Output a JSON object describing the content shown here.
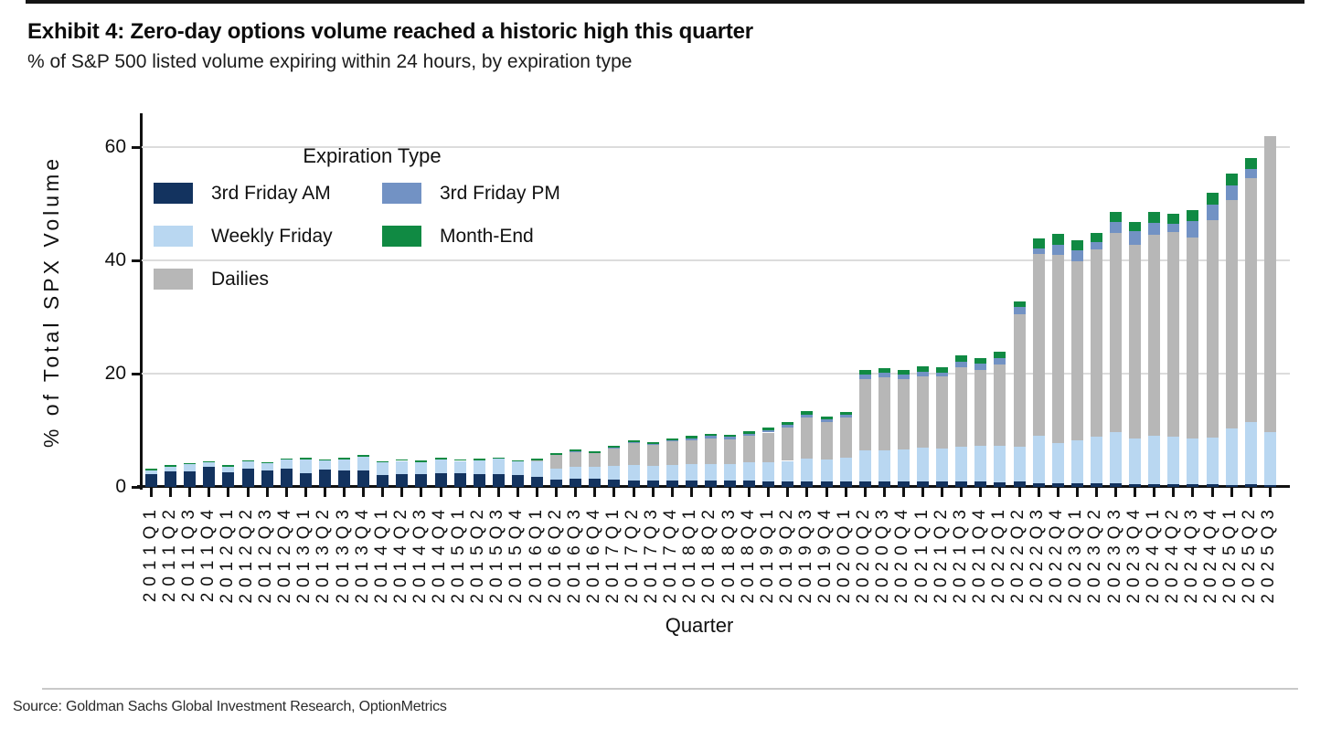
{
  "header": {
    "title": "Exhibit 4: Zero-day options volume reached a historic high this quarter",
    "subtitle": "% of S&P 500 listed volume expiring within 24 hours, by expiration type"
  },
  "chart_data": {
    "type": "bar",
    "stacked": true,
    "ylabel": "% of Total SPX Volume",
    "xlabel": "Quarter",
    "ylim": [
      0,
      65
    ],
    "yticks": [
      0,
      20,
      40,
      60
    ],
    "grid": "horizontal",
    "legend_title": "Expiration Type",
    "legend_position": "upper-left-inside",
    "legend_order": [
      "3rd Friday AM",
      "3rd Friday PM",
      "Weekly Friday",
      "Month-End",
      "Dailies"
    ],
    "categories": [
      "2011Q1",
      "2011Q2",
      "2011Q3",
      "2011Q4",
      "2012Q1",
      "2012Q2",
      "2012Q3",
      "2012Q4",
      "2013Q1",
      "2013Q2",
      "2013Q3",
      "2013Q4",
      "2014Q1",
      "2014Q2",
      "2014Q3",
      "2014Q4",
      "2015Q1",
      "2015Q2",
      "2015Q3",
      "2015Q4",
      "2016Q1",
      "2016Q2",
      "2016Q3",
      "2016Q4",
      "2017Q1",
      "2017Q2",
      "2017Q3",
      "2017Q4",
      "2018Q1",
      "2018Q2",
      "2018Q3",
      "2018Q4",
      "2019Q1",
      "2019Q2",
      "2019Q3",
      "2019Q4",
      "2020Q1",
      "2020Q2",
      "2020Q3",
      "2020Q4",
      "2021Q1",
      "2021Q2",
      "2021Q3",
      "2021Q4",
      "2022Q1",
      "2022Q2",
      "2022Q3",
      "2022Q4",
      "2023Q1",
      "2023Q2",
      "2023Q3",
      "2023Q4",
      "2024Q1",
      "2024Q2",
      "2024Q3",
      "2024Q4",
      "2025Q1",
      "2025Q2",
      "2025Q3"
    ],
    "series": [
      {
        "name": "3rd Friday AM",
        "color": "#13335F",
        "values": [
          2.3,
          2.7,
          2.8,
          3.5,
          2.6,
          3.2,
          2.9,
          3.3,
          2.5,
          3.1,
          2.9,
          2.9,
          2.1,
          2.2,
          2.3,
          2.4,
          2.4,
          2.3,
          2.2,
          2.1,
          1.7,
          1.3,
          1.4,
          1.4,
          1.3,
          1.2,
          1.2,
          1.2,
          1.2,
          1.1,
          1.1,
          1.1,
          1.0,
          1.0,
          1.0,
          1.0,
          1.0,
          1.0,
          1.0,
          0.9,
          0.9,
          0.9,
          0.9,
          0.9,
          0.8,
          0.9,
          0.7,
          0.7,
          0.6,
          0.6,
          0.6,
          0.5,
          0.5,
          0.5,
          0.5,
          0.5,
          0.4,
          0.5,
          0.3
        ]
      },
      {
        "name": "Weekly Friday",
        "color": "#B9D7F1",
        "values": [
          0.6,
          0.9,
          1.2,
          0.8,
          1.0,
          1.3,
          1.3,
          1.5,
          2.4,
          1.6,
          2.0,
          2.4,
          2.3,
          2.4,
          2.1,
          2.4,
          2.2,
          2.4,
          2.8,
          2.4,
          2.8,
          2.0,
          2.1,
          2.2,
          2.4,
          2.6,
          2.5,
          2.7,
          2.9,
          3.0,
          3.0,
          3.2,
          3.4,
          3.6,
          4.0,
          3.8,
          4.1,
          5.4,
          5.5,
          5.7,
          6.0,
          5.8,
          6.2,
          6.3,
          6.5,
          6.2,
          8.3,
          7.0,
          7.7,
          8.2,
          9.0,
          8.0,
          8.6,
          8.3,
          8.0,
          8.2,
          10.0,
          11.0,
          9.3
        ]
      },
      {
        "name": "Dailies",
        "color": "#B7B7B7",
        "values": [
          0,
          0,
          0,
          0,
          0,
          0,
          0,
          0,
          0,
          0,
          0,
          0,
          0,
          0,
          0,
          0,
          0,
          0,
          0,
          0,
          0.2,
          2.3,
          2.7,
          2.3,
          3.0,
          3.9,
          3.7,
          4.1,
          4.2,
          4.5,
          4.3,
          4.7,
          5.2,
          5.9,
          7.3,
          6.6,
          7.2,
          12.7,
          12.9,
          12.4,
          12.6,
          12.8,
          14.0,
          13.5,
          14.3,
          23.4,
          32.1,
          33.2,
          31.5,
          33.2,
          35.2,
          34.3,
          35.4,
          36.2,
          35.5,
          38.4,
          40.2,
          43.0,
          52.4
        ]
      },
      {
        "name": "3rd Friday PM",
        "color": "#7292C4",
        "values": [
          0,
          0,
          0,
          0,
          0,
          0,
          0,
          0,
          0,
          0,
          0,
          0,
          0,
          0,
          0,
          0,
          0,
          0,
          0,
          0,
          0,
          0,
          0.1,
          0.1,
          0.2,
          0.2,
          0.2,
          0.3,
          0.3,
          0.4,
          0.4,
          0.4,
          0.4,
          0.5,
          0.5,
          0.5,
          0.5,
          0.8,
          0.7,
          0.8,
          0.8,
          0.7,
          1.0,
          1.0,
          1.1,
          1.2,
          1.0,
          1.9,
          1.9,
          1.2,
          1.9,
          2.3,
          2.1,
          1.4,
          3.0,
          2.7,
          2.6,
          1.7,
          0
        ]
      },
      {
        "name": "Month-End",
        "color": "#108A43",
        "values": [
          0.3,
          0.3,
          0.1,
          0.2,
          0.2,
          0.2,
          0.1,
          0.2,
          0.3,
          0.2,
          0.2,
          0.4,
          0.1,
          0.2,
          0.3,
          0.3,
          0.2,
          0.3,
          0.2,
          0.2,
          0.3,
          0.3,
          0.3,
          0.3,
          0.3,
          0.3,
          0.3,
          0.3,
          0.4,
          0.4,
          0.4,
          0.4,
          0.5,
          0.5,
          0.6,
          0.5,
          0.5,
          0.8,
          0.9,
          0.9,
          1.0,
          0.9,
          1.1,
          1.1,
          1.2,
          1.1,
          1.8,
          1.8,
          1.8,
          1.7,
          1.9,
          1.6,
          2.0,
          1.8,
          1.8,
          2.2,
          2.2,
          1.8,
          0
        ]
      }
    ]
  },
  "footer": {
    "source": "Source: Goldman Sachs Global Investment Research, OptionMetrics"
  }
}
